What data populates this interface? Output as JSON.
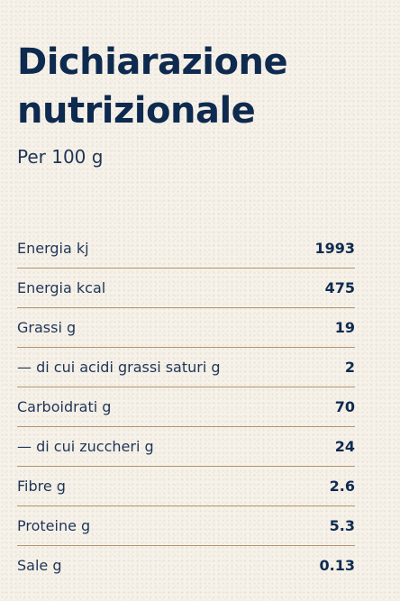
{
  "header": {
    "title_line1": "Dichiarazione",
    "title_line2": "nutrizionale",
    "subtitle": "Per 100 g"
  },
  "nutrition": [
    {
      "label": "Energia kj",
      "value": "1993"
    },
    {
      "label": "Energia kcal",
      "value": "475"
    },
    {
      "label": "Grassi g",
      "value": "19"
    },
    {
      "label": "— di cui acidi grassi saturi g",
      "value": "2"
    },
    {
      "label": "Carboidrati g",
      "value": "70"
    },
    {
      "label": "— di cui zuccheri g",
      "value": "24"
    },
    {
      "label": "Fibre g",
      "value": "2.6"
    },
    {
      "label": "Proteine g",
      "value": "5.3"
    },
    {
      "label": "Sale g",
      "value": "0.13"
    }
  ],
  "colors": {
    "heading": "#0e2a4f",
    "divider": "#b5946a",
    "background": "#f6f2ea"
  }
}
